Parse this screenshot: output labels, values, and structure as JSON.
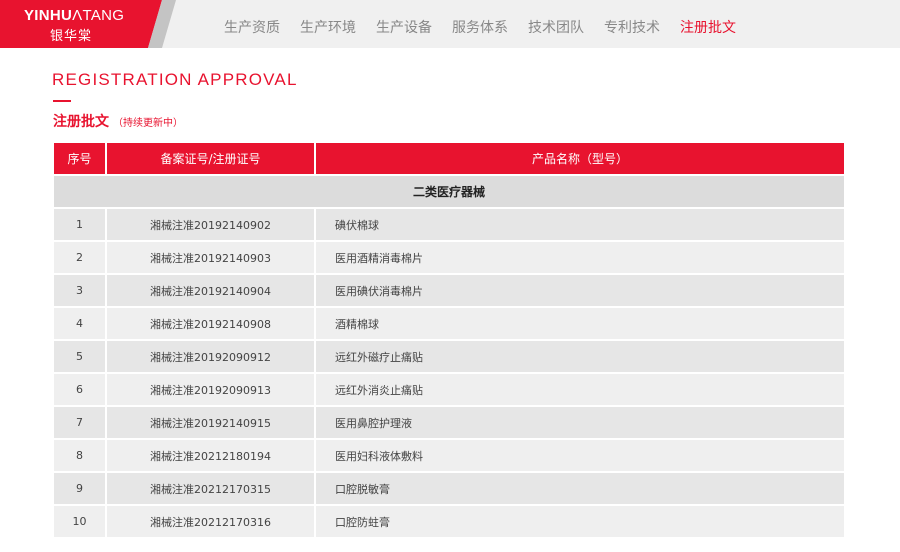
{
  "brand": {
    "en_bold": "YINHU",
    "en_light": "ΛTANG",
    "cn": "银华棠",
    "color": "#e8132f"
  },
  "nav": {
    "items": [
      "生产资质",
      "生产环境",
      "生产设备",
      "服务体系",
      "技术团队",
      "专利技术",
      "注册批文"
    ],
    "active": 6
  },
  "section": {
    "en_title": "REGISTRATION APPROVAL",
    "cn_title": "注册批文",
    "cn_note": "（持续更新中）"
  },
  "table": {
    "headers": [
      "序号",
      "备案证号/注册证号",
      "产品名称（型号）"
    ],
    "category": "二类医疗器械",
    "rows": [
      [
        "1",
        "湘械注准20192140902",
        "碘伏棉球"
      ],
      [
        "2",
        "湘械注准20192140903",
        "医用酒精消毒棉片"
      ],
      [
        "3",
        "湘械注准20192140904",
        "医用碘伏消毒棉片"
      ],
      [
        "4",
        "湘械注准20192140908",
        "酒精棉球"
      ],
      [
        "5",
        "湘械注准20192090912",
        "远红外磁疗止痛贴"
      ],
      [
        "6",
        "湘械注准20192090913",
        "远红外消炎止痛贴"
      ],
      [
        "7",
        "湘械注准20192140915",
        "医用鼻腔护理液"
      ],
      [
        "8",
        "湘械注准20212180194",
        "医用妇科液体敷料"
      ],
      [
        "9",
        "湘械注准20212170315",
        "口腔脱敏膏"
      ],
      [
        "10",
        "湘械注准20212170316",
        "口腔防蛀膏"
      ]
    ]
  }
}
